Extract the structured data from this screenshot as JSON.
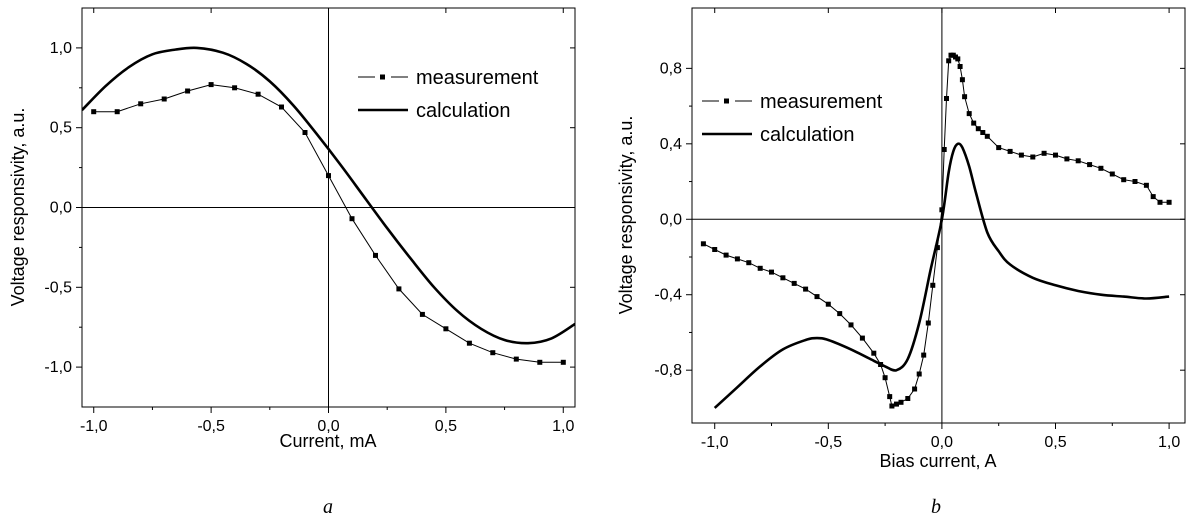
{
  "chart_data": [
    {
      "type": "line",
      "panel_label": "a",
      "xlabel": "Current, mA",
      "ylabel": "Voltage responsivity, a.u.",
      "xlim": [
        -1.05,
        1.05
      ],
      "ylim": [
        -1.25,
        1.25
      ],
      "xticks": [
        -1.0,
        -0.5,
        0.0,
        0.5,
        1.0
      ],
      "xtick_labels": [
        "-1,0",
        "-0,5",
        "0,0",
        "0,5",
        "1,0"
      ],
      "yticks": [
        -1.0,
        -0.5,
        0.0,
        0.5,
        1.0
      ],
      "ytick_labels": [
        "-1,0",
        "-0,5",
        "0,0",
        "0,5",
        "1,0"
      ],
      "zero_lines": true,
      "legend": {
        "placement": "top-right"
      },
      "series": [
        {
          "name": "measurement",
          "style": "line-square-markers",
          "x": [
            -1.0,
            -0.9,
            -0.8,
            -0.7,
            -0.6,
            -0.5,
            -0.4,
            -0.3,
            -0.2,
            -0.1,
            0.0,
            0.1,
            0.2,
            0.3,
            0.4,
            0.5,
            0.6,
            0.7,
            0.8,
            0.9,
            1.0
          ],
          "y": [
            0.6,
            0.6,
            0.65,
            0.68,
            0.73,
            0.77,
            0.75,
            0.71,
            0.63,
            0.47,
            0.2,
            -0.07,
            -0.3,
            -0.51,
            -0.67,
            -0.76,
            -0.85,
            -0.91,
            -0.95,
            -0.97,
            -0.97
          ]
        },
        {
          "name": "calculation",
          "style": "thick-line",
          "x": [
            -1.05,
            -0.95,
            -0.85,
            -0.75,
            -0.65,
            -0.56,
            -0.45,
            -0.35,
            -0.25,
            -0.15,
            -0.05,
            0.05,
            0.15,
            0.25,
            0.35,
            0.45,
            0.55,
            0.65,
            0.75,
            0.85,
            0.95,
            1.05
          ],
          "y": [
            0.61,
            0.76,
            0.88,
            0.96,
            0.99,
            1.0,
            0.97,
            0.9,
            0.79,
            0.64,
            0.46,
            0.27,
            0.07,
            -0.13,
            -0.32,
            -0.5,
            -0.65,
            -0.76,
            -0.83,
            -0.85,
            -0.82,
            -0.73
          ]
        }
      ]
    },
    {
      "type": "line",
      "panel_label": "b",
      "xlabel": "Bias current, A",
      "ylabel": "Voltage responsivity, a.u.",
      "xlim": [
        -1.1,
        1.07
      ],
      "ylim": [
        -1.08,
        1.12
      ],
      "xticks": [
        -1.0,
        -0.5,
        0.0,
        0.5,
        1.0
      ],
      "xtick_labels": [
        "-1,0",
        "-0,5",
        "0,0",
        "0,5",
        "1,0"
      ],
      "yticks": [
        -0.8,
        -0.4,
        0.0,
        0.4,
        0.8
      ],
      "ytick_labels": [
        "-0,8",
        "-0,4",
        "0,0",
        "0,4",
        "0,8"
      ],
      "zero_lines": true,
      "legend": {
        "placement": "top-left"
      },
      "series": [
        {
          "name": "measurement",
          "style": "line-square-markers",
          "x": [
            -1.05,
            -1.0,
            -0.95,
            -0.9,
            -0.85,
            -0.8,
            -0.75,
            -0.7,
            -0.65,
            -0.6,
            -0.55,
            -0.5,
            -0.45,
            -0.4,
            -0.35,
            -0.3,
            -0.27,
            -0.25,
            -0.23,
            -0.22,
            -0.2,
            -0.18,
            -0.15,
            -0.12,
            -0.1,
            -0.08,
            -0.06,
            -0.04,
            -0.02,
            0.0,
            0.01,
            0.02,
            0.03,
            0.04,
            0.05,
            0.06,
            0.07,
            0.08,
            0.09,
            0.1,
            0.12,
            0.14,
            0.16,
            0.18,
            0.2,
            0.25,
            0.3,
            0.35,
            0.4,
            0.45,
            0.5,
            0.55,
            0.6,
            0.65,
            0.7,
            0.75,
            0.8,
            0.85,
            0.9,
            0.93,
            0.96,
            1.0
          ],
          "y": [
            -0.13,
            -0.16,
            -0.19,
            -0.21,
            -0.23,
            -0.26,
            -0.28,
            -0.31,
            -0.34,
            -0.37,
            -0.41,
            -0.45,
            -0.5,
            -0.56,
            -0.63,
            -0.71,
            -0.77,
            -0.84,
            -0.94,
            -0.99,
            -0.98,
            -0.97,
            -0.95,
            -0.9,
            -0.82,
            -0.72,
            -0.55,
            -0.35,
            -0.15,
            0.05,
            0.37,
            0.64,
            0.84,
            0.87,
            0.87,
            0.86,
            0.85,
            0.81,
            0.74,
            0.65,
            0.56,
            0.51,
            0.48,
            0.46,
            0.44,
            0.38,
            0.36,
            0.34,
            0.33,
            0.35,
            0.34,
            0.32,
            0.31,
            0.29,
            0.27,
            0.24,
            0.21,
            0.2,
            0.18,
            0.12,
            0.09,
            0.09
          ]
        },
        {
          "name": "calculation",
          "style": "thick-line",
          "x": [
            -1.0,
            -0.9,
            -0.8,
            -0.7,
            -0.6,
            -0.55,
            -0.5,
            -0.4,
            -0.3,
            -0.25,
            -0.2,
            -0.15,
            -0.1,
            -0.05,
            0.0,
            0.03,
            0.05,
            0.07,
            0.09,
            0.12,
            0.15,
            0.2,
            0.25,
            0.3,
            0.4,
            0.5,
            0.6,
            0.7,
            0.8,
            0.9,
            1.0
          ],
          "y": [
            -1.0,
            -0.89,
            -0.78,
            -0.69,
            -0.64,
            -0.63,
            -0.64,
            -0.69,
            -0.75,
            -0.78,
            -0.8,
            -0.74,
            -0.55,
            -0.27,
            0.0,
            0.25,
            0.36,
            0.4,
            0.38,
            0.28,
            0.14,
            -0.07,
            -0.17,
            -0.24,
            -0.31,
            -0.35,
            -0.38,
            -0.4,
            -0.41,
            -0.42,
            -0.41
          ]
        }
      ]
    }
  ]
}
